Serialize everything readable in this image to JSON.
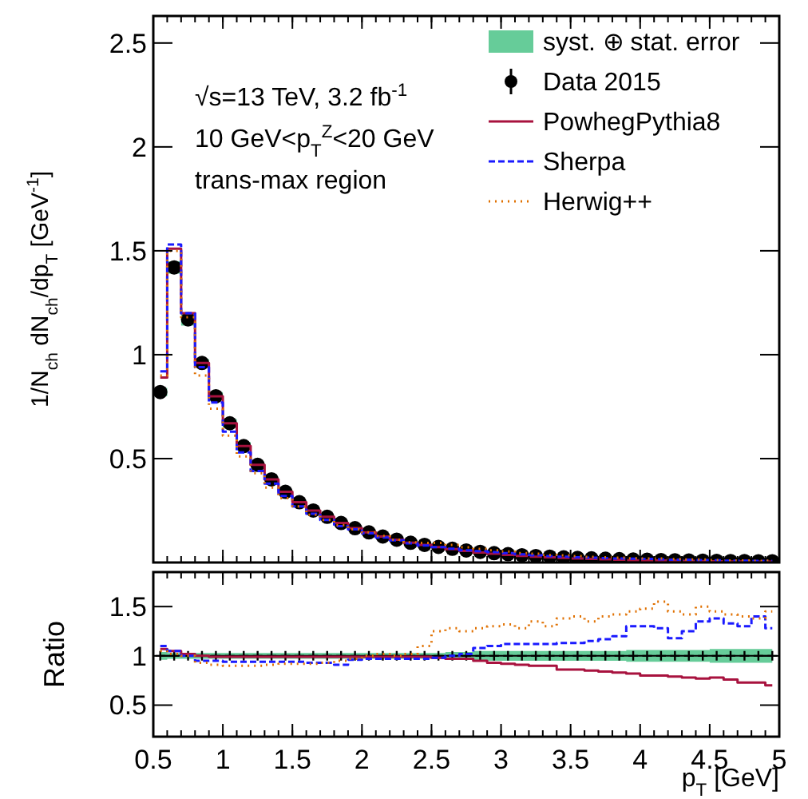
{
  "chart_data": [
    {
      "type": "step",
      "ylabel": "1/N$_{ch}$ dN$_{ch}$/dp$_{T}$ [GeV$^{-1}$]",
      "annotations": [
        "√s=13 TeV, 3.2 fb$^{-1}$",
        "10 GeV<p$_{T}$$^{Z}$<20 GeV",
        "trans-max region"
      ],
      "x": [
        0.55,
        0.65,
        0.75,
        0.85,
        0.95,
        1.05,
        1.15,
        1.25,
        1.35,
        1.45,
        1.55,
        1.65,
        1.75,
        1.85,
        1.95,
        2.05,
        2.15,
        2.25,
        2.35,
        2.45,
        2.55,
        2.65,
        2.75,
        2.85,
        2.95,
        3.05,
        3.15,
        3.25,
        3.35,
        3.45,
        3.55,
        3.65,
        3.75,
        3.85,
        3.95,
        4.05,
        4.15,
        4.25,
        4.35,
        4.45,
        4.55,
        4.65,
        4.75,
        4.85,
        4.95
      ],
      "series": [
        {
          "name": "syst. ⊕ stat. error",
          "type": "line",
          "color": "#66cc99",
          "values": [
            null,
            null,
            null,
            null,
            null,
            null,
            null,
            null,
            null,
            null,
            null,
            null,
            null,
            null,
            null,
            null,
            null,
            null,
            null,
            null,
            null,
            null,
            null,
            null,
            null,
            null,
            null,
            null,
            null,
            null,
            null,
            null,
            null,
            null,
            null,
            null,
            null,
            null,
            null,
            null,
            null,
            null,
            null,
            null,
            null
          ],
          "lower": [
            0.8,
            1.39,
            1.14,
            0.94,
            0.78,
            0.65,
            0.54,
            0.46,
            0.39,
            0.33,
            0.28,
            0.24,
            0.21,
            0.18,
            0.16,
            0.14,
            0.12,
            0.105,
            0.091,
            0.081,
            0.071,
            0.062,
            0.054,
            0.047,
            0.042,
            0.037,
            0.032,
            0.029,
            0.026,
            0.023,
            0.02,
            0.018,
            0.017,
            0.015,
            0.013,
            0.012,
            0.011,
            0.01,
            0.009,
            0.008,
            0.007,
            0.006,
            0.006,
            0.005,
            0.005
          ],
          "upper": [
            0.84,
            1.45,
            1.2,
            0.98,
            0.82,
            0.69,
            0.58,
            0.48,
            0.41,
            0.35,
            0.3,
            0.26,
            0.23,
            0.2,
            0.17,
            0.15,
            0.13,
            0.115,
            0.099,
            0.089,
            0.079,
            0.07,
            0.062,
            0.055,
            0.048,
            0.043,
            0.038,
            0.033,
            0.03,
            0.027,
            0.024,
            0.022,
            0.019,
            0.017,
            0.015,
            0.014,
            0.013,
            0.012,
            0.011,
            0.01,
            0.009,
            0.008,
            0.008,
            0.007,
            0.007
          ]
        },
        {
          "name": "Data 2015",
          "type": "scatter",
          "marker": "circle",
          "color": "#000000",
          "values": [
            0.82,
            1.42,
            1.17,
            0.96,
            0.8,
            0.67,
            0.56,
            0.47,
            0.4,
            0.34,
            0.29,
            0.25,
            0.22,
            0.19,
            0.165,
            0.145,
            0.125,
            0.11,
            0.095,
            0.085,
            0.075,
            0.066,
            0.058,
            0.051,
            0.045,
            0.04,
            0.035,
            0.031,
            0.028,
            0.025,
            0.022,
            0.02,
            0.018,
            0.016,
            0.014,
            0.013,
            0.012,
            0.011,
            0.01,
            0.009,
            0.008,
            0.007,
            0.007,
            0.006,
            0.006
          ]
        },
        {
          "name": "PowhegPythia8",
          "line_style": "solid",
          "color": "#a8123e",
          "values": [
            0.89,
            1.51,
            1.2,
            0.96,
            0.8,
            0.67,
            0.56,
            0.47,
            0.4,
            0.34,
            0.29,
            0.25,
            0.22,
            0.19,
            0.165,
            0.145,
            0.125,
            0.11,
            0.095,
            0.085,
            0.074,
            0.064,
            0.056,
            0.048,
            0.042,
            0.037,
            0.032,
            0.028,
            0.025,
            0.022,
            0.019,
            0.017,
            0.015,
            0.013,
            0.011,
            0.01,
            0.01,
            0.009,
            0.008,
            0.007,
            0.006,
            0.005,
            0.005,
            0.004,
            0.004
          ]
        },
        {
          "name": "Sherpa",
          "line_style": "dashed",
          "color": "#1a1aff",
          "values": [
            0.92,
            1.53,
            1.2,
            0.94,
            0.77,
            0.63,
            0.53,
            0.44,
            0.38,
            0.32,
            0.27,
            0.235,
            0.205,
            0.175,
            0.16,
            0.14,
            0.12,
            0.107,
            0.092,
            0.082,
            0.074,
            0.066,
            0.059,
            0.055,
            0.05,
            0.045,
            0.039,
            0.035,
            0.031,
            0.028,
            0.025,
            0.023,
            0.021,
            0.019,
            0.018,
            0.017,
            0.015,
            0.013,
            0.013,
            0.012,
            0.011,
            0.009,
            0.009,
            0.008,
            0.008
          ]
        },
        {
          "name": "Herwig++",
          "line_style": "dotted",
          "color": "#e07000",
          "values": [
            0.9,
            1.5,
            1.18,
            0.9,
            0.74,
            0.61,
            0.51,
            0.43,
            0.36,
            0.31,
            0.27,
            0.23,
            0.205,
            0.18,
            0.16,
            0.145,
            0.128,
            0.11,
            0.097,
            0.094,
            0.094,
            0.085,
            0.073,
            0.065,
            0.059,
            0.053,
            0.045,
            0.042,
            0.036,
            0.035,
            0.031,
            0.027,
            0.025,
            0.023,
            0.02,
            0.019,
            0.019,
            0.016,
            0.014,
            0.014,
            0.012,
            0.01,
            0.01,
            0.008,
            0.009
          ]
        }
      ],
      "xlim": [
        0.5,
        5
      ],
      "xticks": [
        0.5,
        1,
        1.5,
        2,
        2.5,
        3,
        3.5,
        4,
        4.5,
        5
      ],
      "ylim": [
        0,
        2.63
      ],
      "yticks": [
        0.5,
        1,
        1.5,
        2,
        2.5
      ],
      "tick_labels": "y",
      "legend": "top right"
    },
    {
      "type": "step",
      "ylabel": "Ratio",
      "xlabel": "p$_{T}$ [GeV]",
      "x": [
        0.55,
        0.65,
        0.75,
        0.85,
        0.95,
        1.05,
        1.15,
        1.25,
        1.35,
        1.45,
        1.55,
        1.65,
        1.75,
        1.85,
        1.95,
        2.05,
        2.15,
        2.25,
        2.35,
        2.45,
        2.55,
        2.65,
        2.75,
        2.85,
        2.95,
        3.05,
        3.15,
        3.25,
        3.35,
        3.45,
        3.55,
        3.65,
        3.75,
        3.85,
        3.95,
        4.05,
        4.15,
        4.25,
        4.35,
        4.45,
        4.55,
        4.65,
        4.75,
        4.85,
        4.95
      ],
      "series": [
        {
          "type": "line",
          "color": "#66cc99",
          "values": [
            null,
            null,
            null,
            null,
            null,
            null,
            null,
            null,
            null,
            null,
            null,
            null,
            null,
            null,
            null,
            null,
            null,
            null,
            null,
            null,
            null,
            null,
            null,
            null,
            null,
            null,
            null,
            null,
            null,
            null,
            null,
            null,
            null,
            null,
            null,
            null,
            null,
            null,
            null,
            null,
            null,
            null,
            null,
            null,
            null
          ],
          "lower": [
            0.96,
            0.97,
            0.97,
            0.97,
            0.97,
            0.97,
            0.97,
            0.97,
            0.97,
            0.97,
            0.97,
            0.97,
            0.97,
            0.97,
            0.97,
            0.97,
            0.97,
            0.97,
            0.97,
            0.97,
            0.97,
            0.96,
            0.96,
            0.95,
            0.95,
            0.95,
            0.95,
            0.95,
            0.95,
            0.95,
            0.95,
            0.95,
            0.95,
            0.95,
            0.94,
            0.94,
            0.94,
            0.94,
            0.94,
            0.94,
            0.93,
            0.93,
            0.93,
            0.93,
            0.93
          ],
          "upper": [
            1.04,
            1.03,
            1.03,
            1.03,
            1.03,
            1.03,
            1.03,
            1.03,
            1.03,
            1.03,
            1.03,
            1.03,
            1.03,
            1.03,
            1.03,
            1.03,
            1.03,
            1.03,
            1.03,
            1.03,
            1.03,
            1.04,
            1.04,
            1.05,
            1.05,
            1.05,
            1.05,
            1.05,
            1.05,
            1.05,
            1.05,
            1.05,
            1.05,
            1.05,
            1.06,
            1.06,
            1.06,
            1.06,
            1.06,
            1.06,
            1.07,
            1.07,
            1.07,
            1.07,
            1.07
          ]
        },
        {
          "type": "line",
          "marker": "cross",
          "color": "#000000",
          "values": [
            1,
            1,
            1,
            1,
            1,
            1,
            1,
            1,
            1,
            1,
            1,
            1,
            1,
            1,
            1,
            1,
            1,
            1,
            1,
            1,
            1,
            1,
            1,
            1,
            1,
            1,
            1,
            1,
            1,
            1,
            1,
            1,
            1,
            1,
            1,
            1,
            1,
            1,
            1,
            1,
            1,
            1,
            1,
            1,
            1
          ]
        },
        {
          "line_style": "solid",
          "color": "#a8123e",
          "values": [
            1.07,
            1.05,
            1.02,
            1.0,
            0.99,
            0.99,
            0.99,
            0.99,
            0.99,
            0.99,
            0.99,
            0.99,
            0.99,
            0.99,
            0.99,
            0.99,
            0.99,
            0.99,
            0.99,
            0.99,
            0.98,
            0.97,
            0.97,
            0.95,
            0.93,
            0.92,
            0.91,
            0.9,
            0.9,
            0.86,
            0.86,
            0.85,
            0.84,
            0.83,
            0.82,
            0.8,
            0.8,
            0.79,
            0.78,
            0.77,
            0.78,
            0.76,
            0.73,
            0.73,
            0.7
          ]
        },
        {
          "line_style": "dashed",
          "color": "#1a1aff",
          "values": [
            1.1,
            1.05,
            1.0,
            0.95,
            0.95,
            0.94,
            0.94,
            0.94,
            0.94,
            0.94,
            0.94,
            0.93,
            0.93,
            0.91,
            0.96,
            0.97,
            0.97,
            0.97,
            0.97,
            0.97,
            0.98,
            1.0,
            1.02,
            1.08,
            1.1,
            1.12,
            1.12,
            1.12,
            1.12,
            1.13,
            1.13,
            1.15,
            1.17,
            1.2,
            1.3,
            1.3,
            1.28,
            1.18,
            1.25,
            1.35,
            1.38,
            1.33,
            1.3,
            1.4,
            1.28
          ]
        },
        {
          "line_style": "dotted",
          "color": "#e07000",
          "values": [
            1.05,
            1.02,
            1.0,
            0.93,
            0.91,
            0.9,
            0.9,
            0.9,
            0.91,
            0.92,
            0.92,
            0.92,
            0.93,
            0.95,
            0.97,
            1.0,
            1.02,
            1.0,
            1.02,
            1.1,
            1.25,
            1.28,
            1.25,
            1.28,
            1.3,
            1.32,
            1.28,
            1.35,
            1.3,
            1.38,
            1.4,
            1.35,
            1.4,
            1.42,
            1.45,
            1.48,
            1.55,
            1.45,
            1.42,
            1.5,
            1.45,
            1.42,
            1.4,
            1.38,
            1.45
          ]
        }
      ],
      "xlim": [
        0.5,
        5
      ],
      "xticks": [
        0.5,
        1,
        1.5,
        2,
        2.5,
        3,
        3.5,
        4,
        4.5,
        5
      ],
      "ylim": [
        0.18,
        1.85
      ],
      "yticks": [
        0.5,
        1,
        1.5
      ]
    }
  ]
}
